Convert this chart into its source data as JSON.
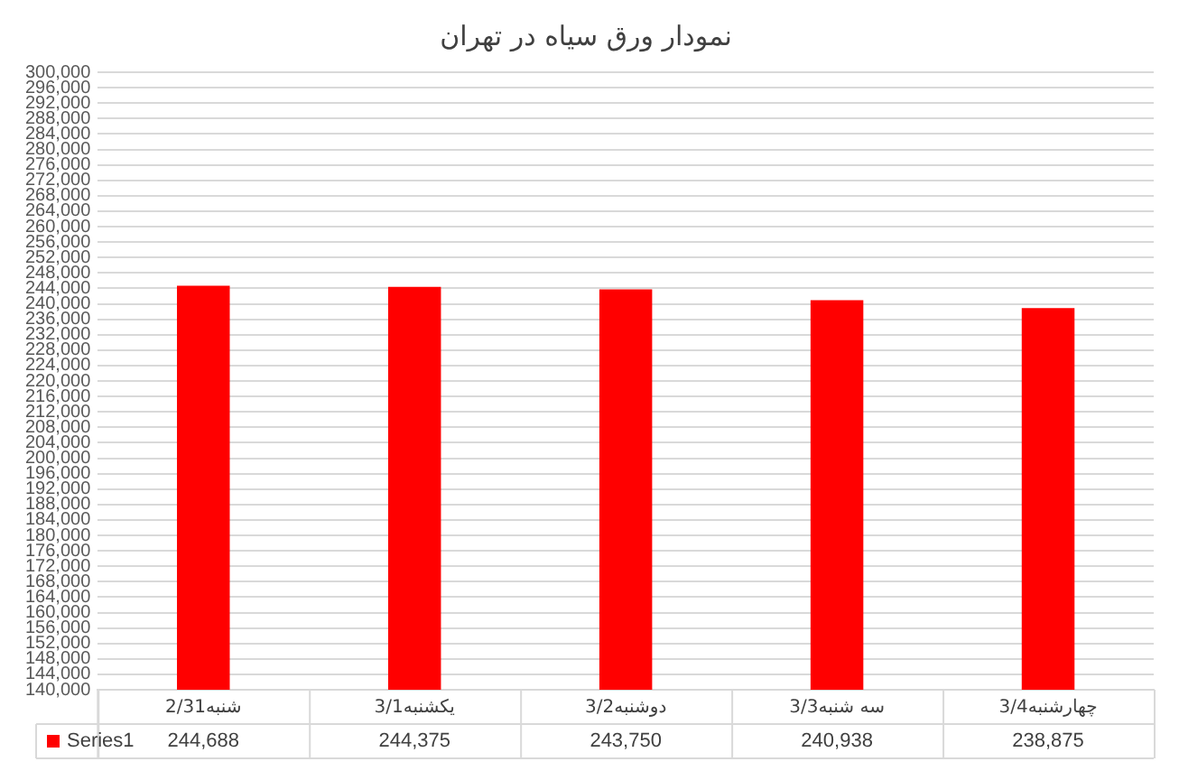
{
  "chart_data": {
    "type": "bar",
    "title": "نمودار ورق سیاه در تهران",
    "categories": [
      "شنبه2/31",
      "یکشنبه3/1",
      "دوشنبه3/2",
      "سه شنبه3/3",
      "چهارشنبه3/4"
    ],
    "series": [
      {
        "name": "Series1",
        "color": "#ff0000",
        "values": [
          244688,
          244375,
          243750,
          240938,
          238875
        ],
        "value_labels": [
          "244,688",
          "244,375",
          "243,750",
          "240,938",
          "238,875"
        ]
      }
    ],
    "ylim": [
      140000,
      300000
    ],
    "yticks": [
      {
        "value": 140000,
        "label": "140,000"
      },
      {
        "value": 144000,
        "label": "144,000"
      },
      {
        "value": 148000,
        "label": "148,000"
      },
      {
        "value": 152000,
        "label": "152,000"
      },
      {
        "value": 156000,
        "label": "156,000"
      },
      {
        "value": 160000,
        "label": "160,000"
      },
      {
        "value": 164000,
        "label": "164,000"
      },
      {
        "value": 168000,
        "label": "168,000"
      },
      {
        "value": 172000,
        "label": "172,000"
      },
      {
        "value": 176000,
        "label": "176,000"
      },
      {
        "value": 180000,
        "label": "180,000"
      },
      {
        "value": 184000,
        "label": "184,000"
      },
      {
        "value": 188000,
        "label": "188,000"
      },
      {
        "value": 192000,
        "label": "192,000"
      },
      {
        "value": 196000,
        "label": "196,000"
      },
      {
        "value": 200000,
        "label": "200,000"
      },
      {
        "value": 204000,
        "label": "204,000"
      },
      {
        "value": 208000,
        "label": "208,000"
      },
      {
        "value": 212000,
        "label": "212,000"
      },
      {
        "value": 216000,
        "label": "216,000"
      },
      {
        "value": 220000,
        "label": "220,000"
      },
      {
        "value": 224000,
        "label": "224,000"
      },
      {
        "value": 228000,
        "label": "228,000"
      },
      {
        "value": 232000,
        "label": "232,000"
      },
      {
        "value": 236000,
        "label": "236,000"
      },
      {
        "value": 240000,
        "label": "240,000"
      },
      {
        "value": 244000,
        "label": "244,000"
      },
      {
        "value": 248000,
        "label": "248,000"
      },
      {
        "value": 252000,
        "label": "252,000"
      },
      {
        "value": 256000,
        "label": "256,000"
      },
      {
        "value": 260000,
        "label": "260,000"
      },
      {
        "value": 264000,
        "label": "264,000"
      },
      {
        "value": 268000,
        "label": "268,000"
      },
      {
        "value": 272000,
        "label": "272,000"
      },
      {
        "value": 276000,
        "label": "276,000"
      },
      {
        "value": 280000,
        "label": "280,000"
      },
      {
        "value": 284000,
        "label": "284,000"
      },
      {
        "value": 288000,
        "label": "288,000"
      },
      {
        "value": 292000,
        "label": "292,000"
      },
      {
        "value": 296000,
        "label": "296,000"
      },
      {
        "value": 300000,
        "label": "300,000"
      }
    ],
    "grid": "y"
  }
}
